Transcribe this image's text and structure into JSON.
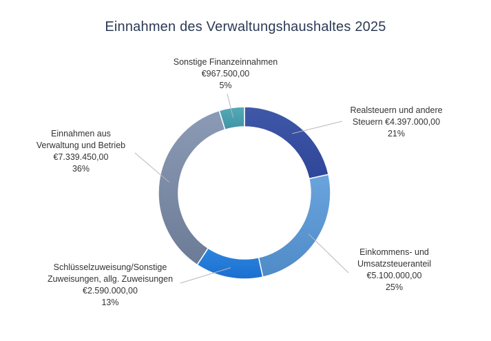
{
  "chart_data": {
    "type": "pie",
    "variant": "donut",
    "title": "Einnahmen des Verwaltungshaushaltes 2025",
    "legend": "none",
    "slices": [
      {
        "key": "realsteuern",
        "label_lines": [
          "Realsteuern und andere",
          "Steuern  €4.397.000,00"
        ],
        "value": 4397000,
        "value_label": "",
        "percent_label": "21%",
        "color": "#4058a8",
        "color_dark": "#2f4699"
      },
      {
        "key": "einkommen",
        "label_lines": [
          "Einkommens- und",
          "Umsatzsteueranteil"
        ],
        "value": 5100000,
        "value_label": "€5.100.000,00",
        "percent_label": "25%",
        "color": "#6aa4dd",
        "color_dark": "#4f8bc8"
      },
      {
        "key": "schluessel",
        "label_lines": [
          "Schlüsselzuweisung/Sonstige",
          "Zuweisungen, allg. Zuweisungen"
        ],
        "value": 2590000,
        "value_label": "€2.590.000,00",
        "percent_label": "13%",
        "color": "#2e86de",
        "color_dark": "#1a6fd0"
      },
      {
        "key": "verwaltung",
        "label_lines": [
          "Einnahmen aus",
          "Verwaltung und Betrieb"
        ],
        "value": 7339450,
        "value_label": "€7.339.450,00",
        "percent_label": "36%",
        "color": "#8c9bb5",
        "color_dark": "#6c7b96"
      },
      {
        "key": "sonstige",
        "label_lines": [
          "Sonstige Finanzeinnahmen"
        ],
        "value": 967500,
        "value_label": "€967.500,00",
        "percent_label": "5%",
        "color": "#55a9b8",
        "color_dark": "#3f94a4"
      }
    ]
  }
}
